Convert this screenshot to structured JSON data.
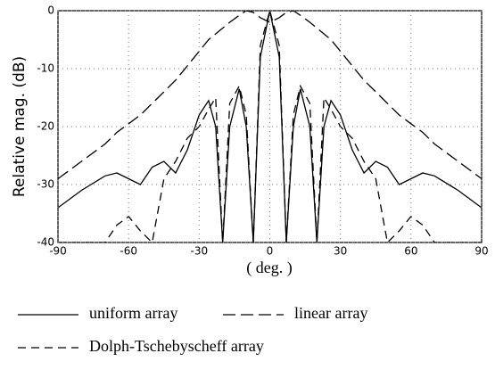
{
  "chart_data": {
    "type": "line",
    "xlabel": "( deg. )",
    "ylabel": "Relative mag. (dB)",
    "x": [
      -90,
      -80,
      -70,
      -65,
      -60,
      -55,
      -50,
      -45,
      -40,
      -35,
      -30,
      -26,
      -23,
      -20,
      -17,
      -13,
      -10,
      -7,
      -4,
      0,
      4,
      7,
      10,
      13,
      17,
      20,
      23,
      26,
      30,
      35,
      40,
      45,
      50,
      55,
      60,
      65,
      70,
      80,
      90
    ],
    "series": [
      {
        "name": "uniform array",
        "color": "#000000",
        "line_style": "solid",
        "values": [
          -34,
          -31,
          -28.5,
          -28,
          -29,
          -30,
          -27,
          -26,
          -28,
          -24,
          -18,
          -15.5,
          -20,
          -40,
          -20,
          -13.5,
          -20,
          -40,
          -8,
          0,
          -8,
          -40,
          -20,
          -13.5,
          -20,
          -40,
          -20,
          -15.5,
          -18,
          -24,
          -28,
          -26,
          -27,
          -30,
          -29,
          -28,
          -28.5,
          -31,
          -34
        ]
      },
      {
        "name": "linear array",
        "color": "#000000",
        "line_style": "long-dash",
        "values": [
          -29,
          -26,
          -23,
          -21,
          -19.5,
          -18,
          -16,
          -14,
          -12,
          -9.5,
          -7,
          -5,
          -4,
          -3,
          -2,
          -0.8,
          0,
          -0.3,
          -1.2,
          -2,
          -1.2,
          -0.3,
          0,
          -0.8,
          -2,
          -3,
          -4,
          -5,
          -7,
          -9.5,
          -12,
          -14,
          -16,
          -18,
          -19.5,
          -21,
          -23,
          -26,
          -29
        ]
      },
      {
        "name": "Dolph-Tschebyscheff array",
        "color": "#000000",
        "line_style": "dash",
        "values": [
          -40,
          -40,
          -40,
          -37,
          -35.5,
          -38,
          -40,
          -29,
          -26,
          -22,
          -20,
          -17,
          -15,
          -40,
          -16,
          -13,
          -18,
          -40,
          -6,
          0,
          -6,
          -40,
          -18,
          -13,
          -16,
          -40,
          -15,
          -17,
          -20,
          -22,
          -26,
          -29,
          -40,
          -38,
          -35.5,
          -37,
          -40,
          -40,
          -40
        ]
      }
    ],
    "xlim": [
      -90,
      90
    ],
    "xticks": [
      -90,
      -60,
      -30,
      0,
      30,
      60,
      90
    ],
    "ylim": [
      -40,
      0
    ],
    "yticks": [
      -40,
      -30,
      -20,
      -10,
      0
    ],
    "grid": true
  }
}
